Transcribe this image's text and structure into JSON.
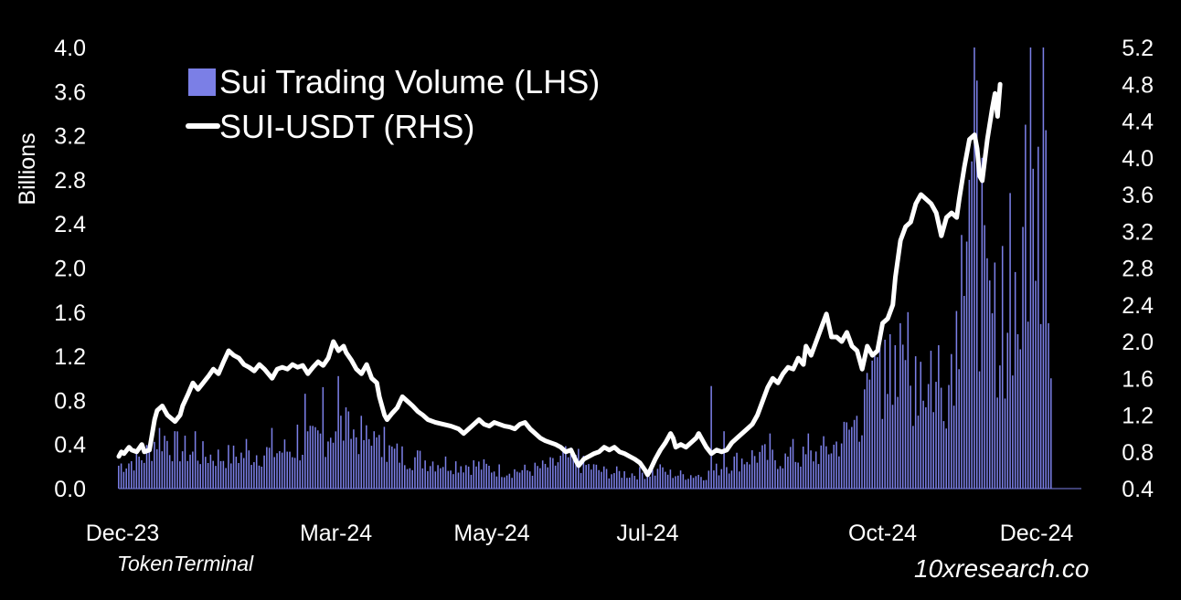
{
  "chart_data": {
    "type": "bar+line",
    "colors": {
      "bars": "#7b7fe6",
      "line": "#ffffff",
      "background": "#000000",
      "text": "#ffffff"
    },
    "legend": [
      {
        "label": "Sui Trading Volume (LHS)",
        "kind": "bar"
      },
      {
        "label": "SUI-USDT (RHS)",
        "kind": "line"
      }
    ],
    "legend_position": "top-left",
    "y_left": {
      "label": "Billions",
      "range": [
        0,
        4.0
      ],
      "ticks": [
        "0.0",
        "0.4",
        "0.8",
        "1.2",
        "1.6",
        "2.0",
        "2.4",
        "2.8",
        "3.2",
        "3.6",
        "4.0"
      ]
    },
    "y_right": {
      "label": "",
      "range": [
        0.4,
        5.2
      ],
      "ticks": [
        "0.4",
        "0.8",
        "1.2",
        "1.6",
        "2.0",
        "2.4",
        "2.8",
        "3.2",
        "3.6",
        "4.0",
        "4.4",
        "4.8",
        "5.2"
      ]
    },
    "x": {
      "range_days": [
        0,
        365
      ],
      "ticks": [
        {
          "label": "Dec-23",
          "day": 0
        },
        {
          "label": "Mar-24",
          "day": 85
        },
        {
          "label": "May-24",
          "day": 146
        },
        {
          "label": "Jul-24",
          "day": 207
        },
        {
          "label": "Oct-24",
          "day": 299
        },
        {
          "label": "Dec-24",
          "day": 360
        }
      ]
    },
    "volume_anchors": [
      [
        0,
        0.22
      ],
      [
        10,
        0.3
      ],
      [
        16,
        0.52
      ],
      [
        22,
        0.4
      ],
      [
        30,
        0.33
      ],
      [
        40,
        0.3
      ],
      [
        50,
        0.32
      ],
      [
        60,
        0.35
      ],
      [
        70,
        0.38
      ],
      [
        80,
        0.48
      ],
      [
        85,
        0.6
      ],
      [
        90,
        0.55
      ],
      [
        96,
        0.48
      ],
      [
        100,
        0.4
      ],
      [
        110,
        0.32
      ],
      [
        120,
        0.27
      ],
      [
        130,
        0.24
      ],
      [
        140,
        0.22
      ],
      [
        150,
        0.17
      ],
      [
        160,
        0.17
      ],
      [
        170,
        0.22
      ],
      [
        175,
        0.3
      ],
      [
        180,
        0.24
      ],
      [
        190,
        0.16
      ],
      [
        200,
        0.14
      ],
      [
        210,
        0.16
      ],
      [
        220,
        0.13
      ],
      [
        230,
        0.13
      ],
      [
        240,
        0.25
      ],
      [
        250,
        0.32
      ],
      [
        260,
        0.28
      ],
      [
        270,
        0.3
      ],
      [
        280,
        0.4
      ],
      [
        288,
        0.6
      ],
      [
        295,
        0.9
      ],
      [
        300,
        1.05
      ],
      [
        305,
        1.0
      ],
      [
        310,
        0.95
      ],
      [
        315,
        1.0
      ],
      [
        320,
        0.95
      ],
      [
        325,
        1.0
      ],
      [
        330,
        1.9
      ],
      [
        332,
        2.5
      ],
      [
        336,
        2.0
      ],
      [
        340,
        1.7
      ],
      [
        345,
        1.4
      ],
      [
        350,
        1.3
      ],
      [
        353,
        1.9
      ],
      [
        356,
        2.7
      ],
      [
        360,
        2.2
      ],
      [
        364,
        1.3
      ]
    ],
    "volume_spikes": [
      [
        16,
        0.55
      ],
      [
        30,
        0.52
      ],
      [
        50,
        0.45
      ],
      [
        60,
        0.55
      ],
      [
        70,
        0.58
      ],
      [
        73,
        0.86
      ],
      [
        80,
        0.92
      ],
      [
        86,
        1.02
      ],
      [
        90,
        0.7
      ],
      [
        100,
        0.52
      ],
      [
        104,
        0.56
      ],
      [
        180,
        0.36
      ],
      [
        212,
        0.22
      ],
      [
        232,
        0.93
      ],
      [
        237,
        0.52
      ],
      [
        255,
        0.5
      ],
      [
        264,
        0.45
      ],
      [
        270,
        0.5
      ],
      [
        289,
        0.66
      ],
      [
        292,
        0.9
      ],
      [
        296,
        1.2
      ],
      [
        298,
        1.32
      ],
      [
        300,
        1.35
      ],
      [
        302,
        1.4
      ],
      [
        304,
        1.3
      ],
      [
        306,
        1.5
      ],
      [
        309,
        1.6
      ],
      [
        312,
        1.2
      ],
      [
        314,
        1.15
      ],
      [
        318,
        1.25
      ],
      [
        321,
        1.3
      ],
      [
        326,
        1.22
      ],
      [
        330,
        2.3
      ],
      [
        333,
        2.8
      ],
      [
        335,
        4.1
      ],
      [
        336,
        3.7
      ],
      [
        338,
        3.0
      ],
      [
        343,
        2.05
      ],
      [
        346,
        2.2
      ],
      [
        349,
        2.68
      ],
      [
        352,
        1.4
      ],
      [
        355,
        3.3
      ],
      [
        357,
        4.1
      ],
      [
        358,
        2.9
      ],
      [
        360,
        3.1
      ],
      [
        362,
        4.1
      ],
      [
        363,
        3.25
      ],
      [
        364,
        1.5
      ],
      [
        365,
        1.0
      ]
    ],
    "price_series": [
      [
        0,
        0.75
      ],
      [
        1,
        0.8
      ],
      [
        2,
        0.78
      ],
      [
        4,
        0.85
      ],
      [
        5,
        0.82
      ],
      [
        7,
        0.8
      ],
      [
        9,
        0.88
      ],
      [
        10,
        0.8
      ],
      [
        12,
        0.82
      ],
      [
        14,
        1.15
      ],
      [
        15,
        1.25
      ],
      [
        17,
        1.3
      ],
      [
        19,
        1.2
      ],
      [
        22,
        1.13
      ],
      [
        24,
        1.2
      ],
      [
        25,
        1.3
      ],
      [
        27,
        1.42
      ],
      [
        29,
        1.55
      ],
      [
        31,
        1.48
      ],
      [
        33,
        1.55
      ],
      [
        35,
        1.62
      ],
      [
        37,
        1.7
      ],
      [
        39,
        1.65
      ],
      [
        41,
        1.78
      ],
      [
        43,
        1.9
      ],
      [
        45,
        1.85
      ],
      [
        47,
        1.82
      ],
      [
        49,
        1.75
      ],
      [
        51,
        1.72
      ],
      [
        53,
        1.68
      ],
      [
        55,
        1.75
      ],
      [
        57,
        1.7
      ],
      [
        60,
        1.6
      ],
      [
        62,
        1.7
      ],
      [
        64,
        1.72
      ],
      [
        66,
        1.7
      ],
      [
        68,
        1.75
      ],
      [
        70,
        1.72
      ],
      [
        72,
        1.74
      ],
      [
        74,
        1.65
      ],
      [
        76,
        1.72
      ],
      [
        78,
        1.78
      ],
      [
        80,
        1.74
      ],
      [
        82,
        1.82
      ],
      [
        84,
        2.0
      ],
      [
        86,
        1.9
      ],
      [
        88,
        1.95
      ],
      [
        89,
        1.88
      ],
      [
        91,
        1.8
      ],
      [
        93,
        1.7
      ],
      [
        95,
        1.65
      ],
      [
        97,
        1.75
      ],
      [
        99,
        1.6
      ],
      [
        101,
        1.55
      ],
      [
        102,
        1.4
      ],
      [
        104,
        1.2
      ],
      [
        105,
        1.15
      ],
      [
        107,
        1.22
      ],
      [
        109,
        1.28
      ],
      [
        111,
        1.4
      ],
      [
        113,
        1.35
      ],
      [
        115,
        1.3
      ],
      [
        117,
        1.24
      ],
      [
        119,
        1.2
      ],
      [
        121,
        1.15
      ],
      [
        124,
        1.12
      ],
      [
        127,
        1.1
      ],
      [
        130,
        1.08
      ],
      [
        133,
        1.05
      ],
      [
        135,
        1.0
      ],
      [
        137,
        1.05
      ],
      [
        139,
        1.1
      ],
      [
        141,
        1.15
      ],
      [
        143,
        1.1
      ],
      [
        145,
        1.08
      ],
      [
        147,
        1.12
      ],
      [
        149,
        1.1
      ],
      [
        151,
        1.08
      ],
      [
        153,
        1.07
      ],
      [
        155,
        1.05
      ],
      [
        157,
        1.1
      ],
      [
        159,
        1.12
      ],
      [
        161,
        1.05
      ],
      [
        163,
        1.0
      ],
      [
        165,
        0.95
      ],
      [
        167,
        0.92
      ],
      [
        169,
        0.9
      ],
      [
        171,
        0.88
      ],
      [
        173,
        0.85
      ],
      [
        175,
        0.8
      ],
      [
        177,
        0.82
      ],
      [
        179,
        0.7
      ],
      [
        180,
        0.65
      ],
      [
        182,
        0.72
      ],
      [
        184,
        0.75
      ],
      [
        186,
        0.78
      ],
      [
        188,
        0.8
      ],
      [
        190,
        0.85
      ],
      [
        192,
        0.82
      ],
      [
        194,
        0.85
      ],
      [
        196,
        0.8
      ],
      [
        198,
        0.78
      ],
      [
        200,
        0.75
      ],
      [
        202,
        0.72
      ],
      [
        204,
        0.68
      ],
      [
        206,
        0.6
      ],
      [
        207,
        0.55
      ],
      [
        208,
        0.6
      ],
      [
        210,
        0.72
      ],
      [
        212,
        0.82
      ],
      [
        214,
        0.9
      ],
      [
        216,
        1.0
      ],
      [
        217,
        0.95
      ],
      [
        218,
        0.85
      ],
      [
        220,
        0.88
      ],
      [
        222,
        0.85
      ],
      [
        224,
        0.9
      ],
      [
        226,
        0.95
      ],
      [
        227,
        1.0
      ],
      [
        228,
        0.95
      ],
      [
        230,
        0.85
      ],
      [
        232,
        0.78
      ],
      [
        234,
        0.82
      ],
      [
        236,
        0.8
      ],
      [
        238,
        0.82
      ],
      [
        240,
        0.9
      ],
      [
        242,
        0.95
      ],
      [
        244,
        1.0
      ],
      [
        246,
        1.05
      ],
      [
        248,
        1.1
      ],
      [
        250,
        1.2
      ],
      [
        252,
        1.35
      ],
      [
        254,
        1.5
      ],
      [
        256,
        1.6
      ],
      [
        258,
        1.55
      ],
      [
        260,
        1.65
      ],
      [
        262,
        1.72
      ],
      [
        264,
        1.7
      ],
      [
        266,
        1.82
      ],
      [
        268,
        1.75
      ],
      [
        269,
        1.95
      ],
      [
        271,
        1.85
      ],
      [
        273,
        2.0
      ],
      [
        275,
        2.15
      ],
      [
        277,
        2.3
      ],
      [
        279,
        2.05
      ],
      [
        281,
        2.05
      ],
      [
        283,
        2.0
      ],
      [
        285,
        2.1
      ],
      [
        287,
        1.95
      ],
      [
        289,
        1.9
      ],
      [
        291,
        1.7
      ],
      [
        293,
        1.95
      ],
      [
        295,
        1.85
      ],
      [
        297,
        1.9
      ],
      [
        299,
        2.2
      ],
      [
        301,
        2.25
      ],
      [
        303,
        2.4
      ],
      [
        304,
        2.7
      ],
      [
        306,
        3.1
      ],
      [
        308,
        3.25
      ],
      [
        310,
        3.3
      ],
      [
        312,
        3.5
      ],
      [
        314,
        3.6
      ],
      [
        316,
        3.55
      ],
      [
        318,
        3.5
      ],
      [
        320,
        3.4
      ],
      [
        322,
        3.15
      ],
      [
        324,
        3.35
      ],
      [
        326,
        3.4
      ],
      [
        328,
        3.35
      ],
      [
        329,
        3.55
      ],
      [
        331,
        3.9
      ],
      [
        333,
        4.2
      ],
      [
        335,
        4.25
      ],
      [
        336,
        4.1
      ],
      [
        337,
        3.8
      ],
      [
        338,
        3.75
      ],
      [
        340,
        4.2
      ],
      [
        342,
        4.55
      ],
      [
        343,
        4.7
      ],
      [
        344,
        4.45
      ],
      [
        345,
        4.8
      ]
    ],
    "price_day_scale": 1.0
  },
  "annotations": {
    "source": "TokenTerminal",
    "brand": "10xresearch.co"
  }
}
